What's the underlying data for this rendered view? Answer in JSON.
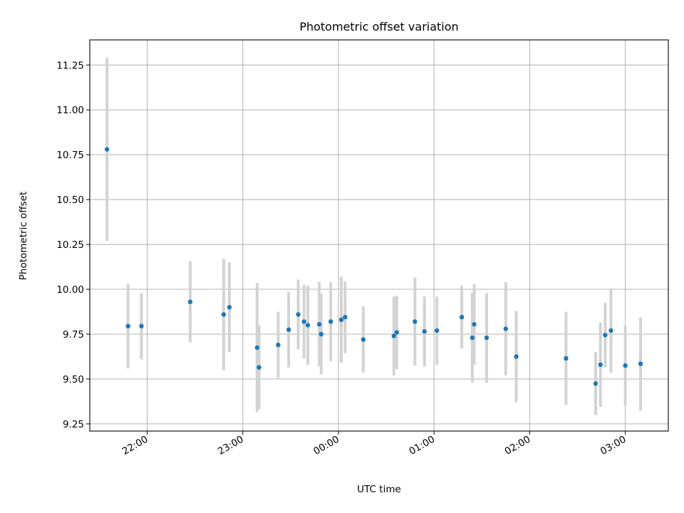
{
  "chart_data": {
    "type": "scatter",
    "title": "Photometric offset variation",
    "xlabel": "UTC time",
    "ylabel": "Photometric offset",
    "xlim": [
      21.4,
      27.45
    ],
    "ylim": [
      9.21,
      11.39
    ],
    "grid": true,
    "x_ticks": [
      {
        "value": 22,
        "label": "22:00"
      },
      {
        "value": 23,
        "label": "23:00"
      },
      {
        "value": 24,
        "label": "00:00"
      },
      {
        "value": 25,
        "label": "01:00"
      },
      {
        "value": 26,
        "label": "02:00"
      },
      {
        "value": 27,
        "label": "03:00"
      }
    ],
    "y_ticks": [
      {
        "value": 9.25,
        "label": "9.25"
      },
      {
        "value": 9.5,
        "label": "9.50"
      },
      {
        "value": 9.75,
        "label": "9.75"
      },
      {
        "value": 10.0,
        "label": "10.00"
      },
      {
        "value": 10.25,
        "label": "10.25"
      },
      {
        "value": 10.5,
        "label": "10.50"
      },
      {
        "value": 10.75,
        "label": "10.75"
      },
      {
        "value": 11.0,
        "label": "11.00"
      },
      {
        "value": 11.25,
        "label": "11.25"
      }
    ],
    "series": [
      {
        "color": "#1f77b4",
        "errorbar_color": "#d3d3d3",
        "points": [
          {
            "x": 21.58,
            "y": 10.78,
            "yerr": 0.51
          },
          {
            "x": 21.8,
            "y": 9.795,
            "yerr": 0.235
          },
          {
            "x": 21.94,
            "y": 9.795,
            "yerr": 0.185
          },
          {
            "x": 22.45,
            "y": 9.93,
            "yerr": 0.225
          },
          {
            "x": 22.8,
            "y": 9.86,
            "yerr": 0.31
          },
          {
            "x": 22.86,
            "y": 9.9,
            "yerr": 0.25
          },
          {
            "x": 23.15,
            "y": 9.675,
            "yerr": 0.36
          },
          {
            "x": 23.17,
            "y": 9.565,
            "yerr": 0.235
          },
          {
            "x": 23.37,
            "y": 9.69,
            "yerr": 0.185
          },
          {
            "x": 23.48,
            "y": 9.775,
            "yerr": 0.21
          },
          {
            "x": 23.58,
            "y": 9.86,
            "yerr": 0.195
          },
          {
            "x": 23.64,
            "y": 9.82,
            "yerr": 0.205
          },
          {
            "x": 23.68,
            "y": 9.8,
            "yerr": 0.22
          },
          {
            "x": 23.8,
            "y": 9.805,
            "yerr": 0.235
          },
          {
            "x": 23.82,
            "y": 9.75,
            "yerr": 0.225
          },
          {
            "x": 23.92,
            "y": 9.82,
            "yerr": 0.22
          },
          {
            "x": 24.03,
            "y": 9.83,
            "yerr": 0.24
          },
          {
            "x": 24.07,
            "y": 9.845,
            "yerr": 0.2
          },
          {
            "x": 24.26,
            "y": 9.72,
            "yerr": 0.185
          },
          {
            "x": 24.58,
            "y": 9.74,
            "yerr": 0.22
          },
          {
            "x": 24.61,
            "y": 9.76,
            "yerr": 0.205
          },
          {
            "x": 24.8,
            "y": 9.82,
            "yerr": 0.245
          },
          {
            "x": 24.9,
            "y": 9.765,
            "yerr": 0.195
          },
          {
            "x": 25.03,
            "y": 9.77,
            "yerr": 0.19
          },
          {
            "x": 25.29,
            "y": 9.845,
            "yerr": 0.175
          },
          {
            "x": 25.4,
            "y": 9.73,
            "yerr": 0.25
          },
          {
            "x": 25.42,
            "y": 9.805,
            "yerr": 0.225
          },
          {
            "x": 25.55,
            "y": 9.73,
            "yerr": 0.25
          },
          {
            "x": 25.75,
            "y": 9.78,
            "yerr": 0.26
          },
          {
            "x": 25.86,
            "y": 9.625,
            "yerr": 0.255
          },
          {
            "x": 26.38,
            "y": 9.615,
            "yerr": 0.26
          },
          {
            "x": 26.69,
            "y": 9.475,
            "yerr": 0.175
          },
          {
            "x": 26.74,
            "y": 9.58,
            "yerr": 0.235
          },
          {
            "x": 26.79,
            "y": 9.745,
            "yerr": 0.18
          },
          {
            "x": 26.85,
            "y": 9.77,
            "yerr": 0.235
          },
          {
            "x": 27.0,
            "y": 9.575,
            "yerr": 0.22
          },
          {
            "x": 27.16,
            "y": 9.585,
            "yerr": 0.26
          }
        ]
      }
    ]
  }
}
